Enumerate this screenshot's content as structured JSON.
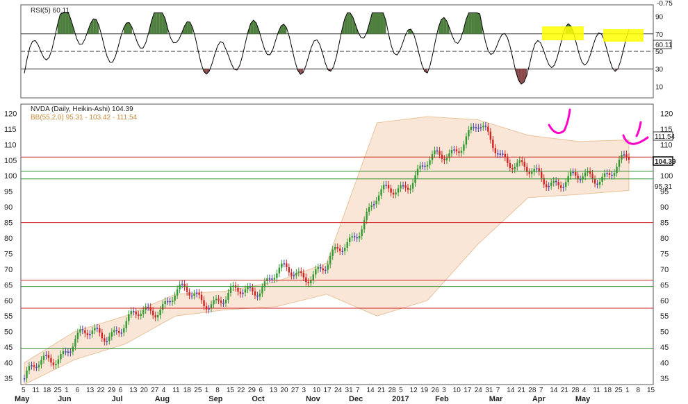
{
  "rsi_panel": {
    "title": "RSI(5) 60.11",
    "last_value": "60.11",
    "top_label": "-0.75",
    "levels": [
      90,
      70,
      50,
      30,
      10
    ],
    "overbought": 70,
    "oversold": 30,
    "colors": {
      "line": "#000000",
      "above": "#4f7f3f",
      "below": "#8a4a4a",
      "highlight": "#ffff00"
    }
  },
  "price_panel": {
    "title": "NVDA (Daily, Heikin-Ashi) 104.39",
    "bb_label": "BB(55,2.0) 95.31 - 103.42 - 111.54",
    "last_price": "104.39",
    "bb_upper": "111.54",
    "bb_lower": "95.31",
    "ylim": [
      33,
      123
    ],
    "y_ticks": [
      35,
      40,
      45,
      50,
      55,
      60,
      65,
      70,
      75,
      80,
      85,
      90,
      95,
      100,
      105,
      110,
      115,
      120
    ],
    "horizontal_lines": [
      {
        "value": 106,
        "color": "#cc2222"
      },
      {
        "value": 101.5,
        "color": "#2a8a2a"
      },
      {
        "value": 99,
        "color": "#2a8a2a"
      },
      {
        "value": 85,
        "color": "#cc2222"
      },
      {
        "value": 66.5,
        "color": "#cc2222"
      },
      {
        "value": 64.5,
        "color": "#2a8a2a"
      },
      {
        "value": 57.5,
        "color": "#cc2222"
      },
      {
        "value": 44.5,
        "color": "#2a8a2a"
      }
    ],
    "colors": {
      "band": "#f6dcc4",
      "up": "#2f9a2f",
      "down": "#d42222",
      "flat": "#4a3fb0",
      "annotation": "#ff00cc"
    }
  },
  "x_axis": {
    "day_labels": [
      "5",
      "11",
      "18",
      "25",
      "1",
      "6",
      "13",
      "22",
      "29",
      "6",
      "13",
      "20",
      "27",
      "4",
      "11",
      "18",
      "25",
      "1",
      "8",
      "15",
      "22",
      "29",
      "6",
      "13",
      "20",
      "27",
      "3",
      "10",
      "17",
      "24",
      "31",
      "7",
      "14",
      "21",
      "28",
      "5",
      "12",
      "19",
      "26",
      "3",
      "10",
      "17",
      "24",
      "31",
      "7",
      "14",
      "21",
      "28",
      "7",
      "14",
      "21",
      "28",
      "4",
      "11",
      "18",
      "25",
      "1",
      "8",
      "15"
    ],
    "month_labels": [
      "May",
      "Jun",
      "Jul",
      "Aug",
      "Sep",
      "Oct",
      "Nov",
      "Dec",
      "2017",
      "Feb",
      "Mar",
      "Apr",
      "May"
    ]
  },
  "chart_data": {
    "type": "line",
    "title": "NVDA (Daily, Heikin-Ashi) 104.39",
    "series": [
      {
        "name": "NVDA",
        "x": [
          "May",
          "Jun",
          "Jul",
          "Aug",
          "Sep",
          "Oct",
          "Nov",
          "Dec",
          "2017",
          "Feb",
          "Mar",
          "Apr",
          "May"
        ],
        "values": [
          35,
          47,
          52,
          62,
          60,
          68,
          70,
          92,
          103,
          115,
          100,
          98,
          104.39
        ]
      },
      {
        "name": "BB(55,2.0) upper",
        "values": [
          40,
          50,
          55,
          62,
          63,
          66,
          72,
          117,
          119,
          118,
          113,
          111,
          111.54
        ]
      },
      {
        "name": "BB(55,2.0) lower",
        "values": [
          33,
          41,
          46,
          55,
          57,
          58,
          62,
          55,
          60,
          78,
          93,
          94,
          95.31
        ]
      },
      {
        "name": "RSI(5)",
        "values": [
          25,
          85,
          60,
          80,
          40,
          65,
          45,
          90,
          50,
          85,
          35,
          55,
          60.11
        ]
      }
    ],
    "xlabel": "",
    "ylabel": "",
    "ylim": [
      33,
      123
    ],
    "grid": false
  },
  "annotations": {
    "highlight_boxes": 2,
    "magenta_marks": 2
  }
}
